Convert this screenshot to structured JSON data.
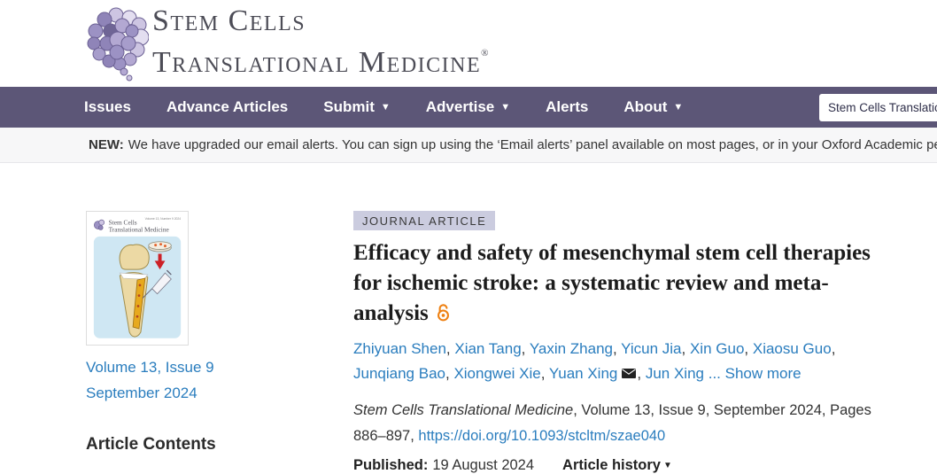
{
  "brand": {
    "title_line1": "Stem Cells",
    "title_line2": "Translational Medicine",
    "registered_mark": "®"
  },
  "nav": {
    "items": [
      {
        "label": "Issues",
        "dropdown": false
      },
      {
        "label": "Advance Articles",
        "dropdown": false
      },
      {
        "label": "Submit",
        "dropdown": true
      },
      {
        "label": "Advertise",
        "dropdown": true
      },
      {
        "label": "Alerts",
        "dropdown": false
      },
      {
        "label": "About",
        "dropdown": true
      }
    ],
    "search_value": "Stem Cells Translational M"
  },
  "notice": {
    "prefix": "NEW:",
    "message": "We have upgraded our email alerts. You can sign up using the ‘Email alerts’ panel available on most pages, or in your Oxford Academic personal acco"
  },
  "sidebar": {
    "cover": {
      "corner_text": "Volume 13, Number 9 2024",
      "mini_title_line1": "Stem Cells",
      "mini_title_line2": "Translational Medicine"
    },
    "issue_link_line1": "Volume 13, Issue 9",
    "issue_link_line2": "September 2024",
    "contents_heading": "Article Contents"
  },
  "article": {
    "badge": "JOURNAL ARTICLE",
    "title": "Efficacy and safety of mesenchymal stem cell therapies for ischemic stroke: a systematic review and meta-analysis",
    "authors": [
      "Zhiyuan Shen",
      "Xian Tang",
      "Yaxin Zhang",
      "Yicun Jia",
      "Xin Guo",
      "Xiaosu Guo",
      "Junqiang Bao",
      "Xiongwei Xie",
      "Yuan Xing",
      "Jun Xing"
    ],
    "corresponding_author": "Yuan Xing",
    "more_ellipsis": "...",
    "show_more_label": "Show more",
    "citation_journal": "Stem Cells Translational Medicine",
    "citation_rest": ", Volume 13, Issue 9, September 2024, Pages 886–897, ",
    "doi_link": "https://doi.org/10.1093/stcltm/szae040",
    "published_label": "Published:",
    "published_date": "19 August 2024",
    "history_label": "Article history"
  },
  "colors": {
    "nav_purple": "#5c5677",
    "link_blue": "#2a7dbe",
    "open_access_orange": "#ee8011",
    "badge_bg": "#cbccdf",
    "logo_purple": "#8f84b8"
  }
}
